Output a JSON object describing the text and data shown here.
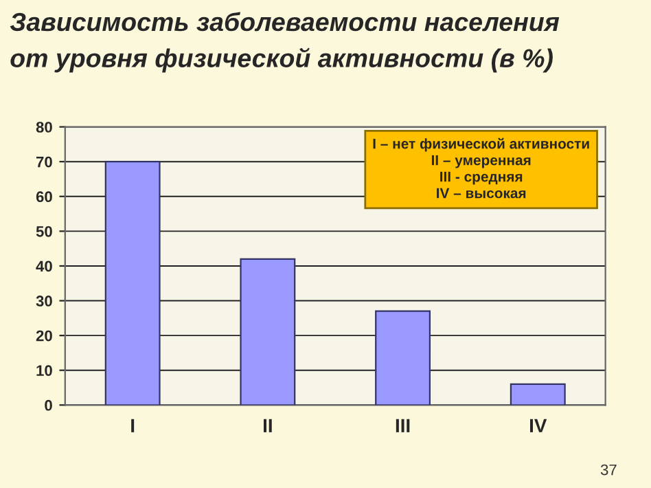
{
  "chart_data": {
    "type": "bar",
    "title": "Зависимость заболеваемости населения\nот уровня физической активности (в %)",
    "categories": [
      "I",
      "II",
      "III",
      "IV"
    ],
    "values": [
      70,
      42,
      27,
      6
    ],
    "color": "#9999ff",
    "ylim": [
      0,
      80
    ],
    "yticks": [
      0,
      10,
      20,
      30,
      40,
      50,
      60,
      70,
      80
    ],
    "grid": "y",
    "annotations": [
      "I – нет физической активности\nII – умеренная\nIII - средняя\nIV – высокая",
      "37"
    ]
  }
}
